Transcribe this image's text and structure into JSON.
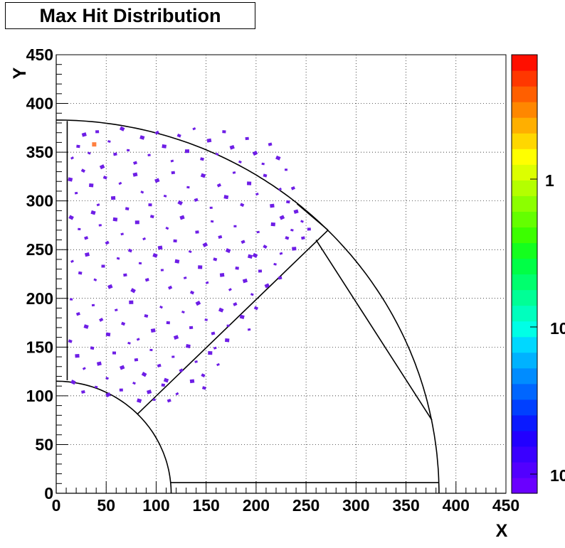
{
  "chart_data": {
    "type": "scatter",
    "title": "Max Hit Distribution",
    "xlabel": "X",
    "ylabel": "Y",
    "xlim": [
      0,
      450
    ],
    "ylim": [
      0,
      450
    ],
    "x_ticks": [
      "0",
      "50",
      "100",
      "150",
      "200",
      "250",
      "300",
      "350",
      "400",
      "450"
    ],
    "y_ticks": [
      "0",
      "50",
      "100",
      "150",
      "200",
      "250",
      "300",
      "350",
      "400",
      "450"
    ],
    "grid": true,
    "colorbar": {
      "position": "right",
      "tick_labels": [
        "1",
        "10",
        "10"
      ],
      "colors": [
        "#6a00ff",
        "#5200ff",
        "#3a00ff",
        "#2200ff",
        "#0a1aff",
        "#0040ff",
        "#0066ff",
        "#008cff",
        "#00b2ff",
        "#00d8ff",
        "#00ffe6",
        "#00ffbe",
        "#00ff96",
        "#00ff6e",
        "#00ff46",
        "#14ff1e",
        "#3cff00",
        "#64ff00",
        "#8cff00",
        "#b4ff00",
        "#dcff00",
        "#ffff00",
        "#ffd700",
        "#ffaf00",
        "#ff8700",
        "#ff5f00",
        "#ff3700",
        "#ff0f00"
      ]
    },
    "marker_color": "#6e1ee6",
    "highlight_point": {
      "x": 38,
      "y": 358,
      "color": "#ff8040"
    },
    "points": [
      [
        16,
        344
      ],
      [
        22,
        356
      ],
      [
        28,
        368
      ],
      [
        33,
        349
      ],
      [
        41,
        371
      ],
      [
        46,
        335
      ],
      [
        53,
        361
      ],
      [
        59,
        348
      ],
      [
        66,
        374
      ],
      [
        72,
        352
      ],
      [
        79,
        339
      ],
      [
        86,
        365
      ],
      [
        93,
        347
      ],
      [
        101,
        370
      ],
      [
        108,
        356
      ],
      [
        116,
        341
      ],
      [
        123,
        367
      ],
      [
        131,
        351
      ],
      [
        138,
        374
      ],
      [
        146,
        343
      ],
      [
        153,
        362
      ],
      [
        161,
        348
      ],
      [
        168,
        371
      ],
      [
        176,
        355
      ],
      [
        184,
        340
      ],
      [
        191,
        364
      ],
      [
        199,
        349
      ],
      [
        207,
        338
      ],
      [
        214,
        358
      ],
      [
        222,
        344
      ],
      [
        230,
        332
      ],
      [
        237,
        313
      ],
      [
        14,
        322
      ],
      [
        20,
        308
      ],
      [
        27,
        331
      ],
      [
        35,
        316
      ],
      [
        42,
        296
      ],
      [
        49,
        324
      ],
      [
        57,
        303
      ],
      [
        64,
        318
      ],
      [
        71,
        292
      ],
      [
        79,
        327
      ],
      [
        86,
        309
      ],
      [
        94,
        296
      ],
      [
        101,
        321
      ],
      [
        109,
        305
      ],
      [
        117,
        329
      ],
      [
        124,
        298
      ],
      [
        132,
        314
      ],
      [
        140,
        301
      ],
      [
        147,
        326
      ],
      [
        155,
        293
      ],
      [
        163,
        316
      ],
      [
        170,
        304
      ],
      [
        178,
        329
      ],
      [
        186,
        296
      ],
      [
        193,
        318
      ],
      [
        201,
        307
      ],
      [
        209,
        326
      ],
      [
        216,
        295
      ],
      [
        224,
        312
      ],
      [
        232,
        299
      ],
      [
        240,
        289
      ],
      [
        246,
        279
      ],
      [
        253,
        271
      ],
      [
        226,
        283
      ],
      [
        236,
        270
      ],
      [
        247,
        262
      ],
      [
        15,
        283
      ],
      [
        23,
        271
      ],
      [
        30,
        262
      ],
      [
        37,
        288
      ],
      [
        44,
        275
      ],
      [
        51,
        257
      ],
      [
        59,
        281
      ],
      [
        66,
        266
      ],
      [
        74,
        249
      ],
      [
        81,
        278
      ],
      [
        88,
        261
      ],
      [
        96,
        284
      ],
      [
        104,
        252
      ],
      [
        111,
        272
      ],
      [
        119,
        259
      ],
      [
        126,
        283
      ],
      [
        134,
        248
      ],
      [
        141,
        268
      ],
      [
        149,
        255
      ],
      [
        156,
        279
      ],
      [
        164,
        263
      ],
      [
        172,
        249
      ],
      [
        179,
        274
      ],
      [
        187,
        258
      ],
      [
        194,
        243
      ],
      [
        202,
        268
      ],
      [
        209,
        253
      ],
      [
        217,
        276
      ],
      [
        225,
        246
      ],
      [
        231,
        262
      ],
      [
        238,
        251
      ],
      [
        16,
        238
      ],
      [
        24,
        226
      ],
      [
        31,
        245
      ],
      [
        39,
        219
      ],
      [
        47,
        233
      ],
      [
        54,
        212
      ],
      [
        62,
        241
      ],
      [
        69,
        224
      ],
      [
        77,
        208
      ],
      [
        84,
        236
      ],
      [
        91,
        219
      ],
      [
        99,
        244
      ],
      [
        106,
        229
      ],
      [
        114,
        211
      ],
      [
        121,
        238
      ],
      [
        129,
        221
      ],
      [
        136,
        206
      ],
      [
        144,
        232
      ],
      [
        151,
        216
      ],
      [
        159,
        240
      ],
      [
        166,
        224
      ],
      [
        174,
        209
      ],
      [
        181,
        231
      ],
      [
        189,
        218
      ],
      [
        196,
        204
      ],
      [
        204,
        228
      ],
      [
        211,
        213
      ],
      [
        219,
        235
      ],
      [
        224,
        221
      ],
      [
        199,
        244
      ],
      [
        15,
        199
      ],
      [
        22,
        184
      ],
      [
        30,
        171
      ],
      [
        37,
        193
      ],
      [
        45,
        178
      ],
      [
        52,
        163
      ],
      [
        60,
        188
      ],
      [
        67,
        174
      ],
      [
        75,
        196
      ],
      [
        82,
        158
      ],
      [
        90,
        182
      ],
      [
        97,
        167
      ],
      [
        105,
        191
      ],
      [
        112,
        175
      ],
      [
        120,
        160
      ],
      [
        127,
        186
      ],
      [
        135,
        170
      ],
      [
        142,
        195
      ],
      [
        150,
        178
      ],
      [
        157,
        164
      ],
      [
        165,
        188
      ],
      [
        172,
        172
      ],
      [
        179,
        194
      ],
      [
        186,
        181
      ],
      [
        193,
        168
      ],
      [
        200,
        190
      ],
      [
        171,
        157
      ],
      [
        159,
        149
      ],
      [
        14,
        156
      ],
      [
        21,
        141
      ],
      [
        28,
        128
      ],
      [
        36,
        149
      ],
      [
        43,
        133
      ],
      [
        51,
        118
      ],
      [
        58,
        144
      ],
      [
        66,
        129
      ],
      [
        73,
        154
      ],
      [
        80,
        137
      ],
      [
        88,
        122
      ],
      [
        95,
        147
      ],
      [
        103,
        131
      ],
      [
        110,
        116
      ],
      [
        117,
        140
      ],
      [
        125,
        126
      ],
      [
        132,
        151
      ],
      [
        140,
        135
      ],
      [
        147,
        121
      ],
      [
        154,
        144
      ],
      [
        162,
        132
      ],
      [
        148,
        108
      ],
      [
        136,
        115
      ],
      [
        121,
        102
      ],
      [
        107,
        111
      ],
      [
        93,
        104
      ],
      [
        78,
        113
      ],
      [
        65,
        106
      ],
      [
        52,
        101
      ],
      [
        40,
        109
      ],
      [
        27,
        104
      ],
      [
        17,
        114
      ],
      [
        98,
        96
      ],
      [
        113,
        95
      ],
      [
        83,
        95
      ]
    ],
    "detector_outline": {
      "outer_radius": 383,
      "inner_radius": 115,
      "tile_lower_x_end": 383,
      "tile_lower_y": 11
    }
  }
}
